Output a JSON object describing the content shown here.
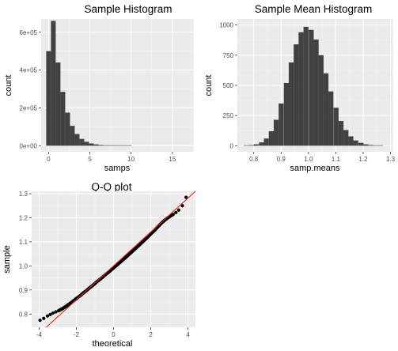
{
  "colors": {
    "panel_bg": "#EBEBEB",
    "grid_major": "#FFFFFF",
    "grid_minor": "#F4F4F4",
    "bar_fill": "#424242",
    "point": "#000000",
    "ref_line": "#E8211A",
    "tick_text": "#4D4D4D",
    "title_text": "#000000"
  },
  "chart_data": [
    {
      "id": "hist1",
      "type": "bar",
      "title": "Sample Histogram",
      "xlabel": "samps",
      "ylabel": "count",
      "xlim": [
        -0.9,
        17.6
      ],
      "ylim": [
        -32000,
        670000
      ],
      "x_ticks": [
        0,
        5,
        10,
        15
      ],
      "x_tick_labels": [
        "0",
        "5",
        "10",
        "15"
      ],
      "y_ticks": [
        0,
        200000,
        400000,
        600000
      ],
      "y_tick_labels": [
        "0e+00",
        "2e+05",
        "4e+05",
        "6e+05"
      ],
      "bin_width": 0.576,
      "bin_centers": [
        0.0,
        0.576,
        1.152,
        1.728,
        2.304,
        2.88,
        3.456,
        4.032,
        4.608,
        5.184,
        5.76,
        6.336,
        6.912,
        7.488,
        8.064,
        8.64,
        9.216,
        9.792
      ],
      "values": [
        500000,
        660000,
        440000,
        285000,
        175000,
        105000,
        62000,
        36000,
        21000,
        12000,
        7000,
        4000,
        2400,
        1400,
        800,
        450,
        250,
        150
      ]
    },
    {
      "id": "hist2",
      "type": "bar",
      "title": "Sample Mean Histogram",
      "xlabel": "samp.means",
      "ylabel": "count",
      "xlim": [
        0.74,
        1.31
      ],
      "ylim": [
        -50,
        1050
      ],
      "x_ticks": [
        0.8,
        0.9,
        1.0,
        1.1,
        1.2,
        1.3
      ],
      "x_tick_labels": [
        "0.8",
        "0.9",
        "1.0",
        "1.1",
        "1.2",
        "1.3"
      ],
      "y_ticks": [
        0,
        250,
        500,
        750,
        1000
      ],
      "y_tick_labels": [
        "0",
        "250",
        "500",
        "750",
        "1000"
      ],
      "bin_width": 0.0182,
      "bin_centers": [
        0.773,
        0.791,
        0.809,
        0.828,
        0.846,
        0.864,
        0.882,
        0.9,
        0.919,
        0.937,
        0.955,
        0.973,
        0.991,
        1.01,
        1.028,
        1.046,
        1.064,
        1.082,
        1.101,
        1.119,
        1.137,
        1.155,
        1.173,
        1.192,
        1.21,
        1.228,
        1.246,
        1.264,
        1.283
      ],
      "values": [
        2,
        5,
        12,
        28,
        60,
        120,
        215,
        350,
        520,
        690,
        840,
        940,
        985,
        960,
        880,
        750,
        600,
        450,
        315,
        205,
        130,
        78,
        44,
        24,
        12,
        6,
        3,
        1,
        0
      ]
    },
    {
      "id": "qq",
      "type": "scatter",
      "title": "Q-Q plot",
      "xlabel": "theoretical",
      "ylabel": "sample",
      "xlim": [
        -4.4,
        4.4
      ],
      "ylim": [
        0.745,
        1.31
      ],
      "x_ticks": [
        -4,
        -2,
        0,
        2,
        4
      ],
      "x_tick_labels": [
        "-4",
        "-2",
        "0",
        "2",
        "4"
      ],
      "y_ticks": [
        0.8,
        0.9,
        1.0,
        1.1,
        1.2,
        1.3
      ],
      "y_tick_labels": [
        "0.8",
        "0.9",
        "1.0",
        "1.1",
        "1.2",
        "1.3"
      ],
      "reference_line": {
        "intercept": 1.0,
        "slope": 0.0705
      },
      "x": [
        -3.95,
        -3.75,
        -3.55,
        -3.4,
        -3.25,
        -3.1,
        -2.95,
        -2.8,
        -2.65,
        -2.5,
        -2.35,
        -2.2,
        -2.05,
        -1.9,
        -1.75,
        -1.6,
        -1.45,
        -1.3,
        -1.15,
        -1.0,
        -0.85,
        -0.7,
        -0.55,
        -0.4,
        -0.25,
        -0.1,
        0.05,
        0.2,
        0.35,
        0.5,
        0.65,
        0.8,
        0.95,
        1.1,
        1.25,
        1.4,
        1.55,
        1.7,
        1.85,
        2.0,
        2.15,
        2.3,
        2.45,
        2.6,
        2.75,
        2.9,
        3.05,
        3.2,
        3.35,
        3.5,
        3.7,
        3.9
      ],
      "y": [
        0.774,
        0.782,
        0.792,
        0.798,
        0.804,
        0.809,
        0.814,
        0.82,
        0.827,
        0.835,
        0.843,
        0.852,
        0.861,
        0.87,
        0.879,
        0.889,
        0.898,
        0.908,
        0.917,
        0.927,
        0.937,
        0.946,
        0.956,
        0.966,
        0.975,
        0.985,
        0.995,
        1.005,
        1.015,
        1.025,
        1.035,
        1.046,
        1.056,
        1.067,
        1.077,
        1.088,
        1.099,
        1.11,
        1.121,
        1.133,
        1.144,
        1.156,
        1.168,
        1.18,
        1.19,
        1.199,
        1.207,
        1.214,
        1.222,
        1.232,
        1.25,
        1.285
      ]
    }
  ]
}
